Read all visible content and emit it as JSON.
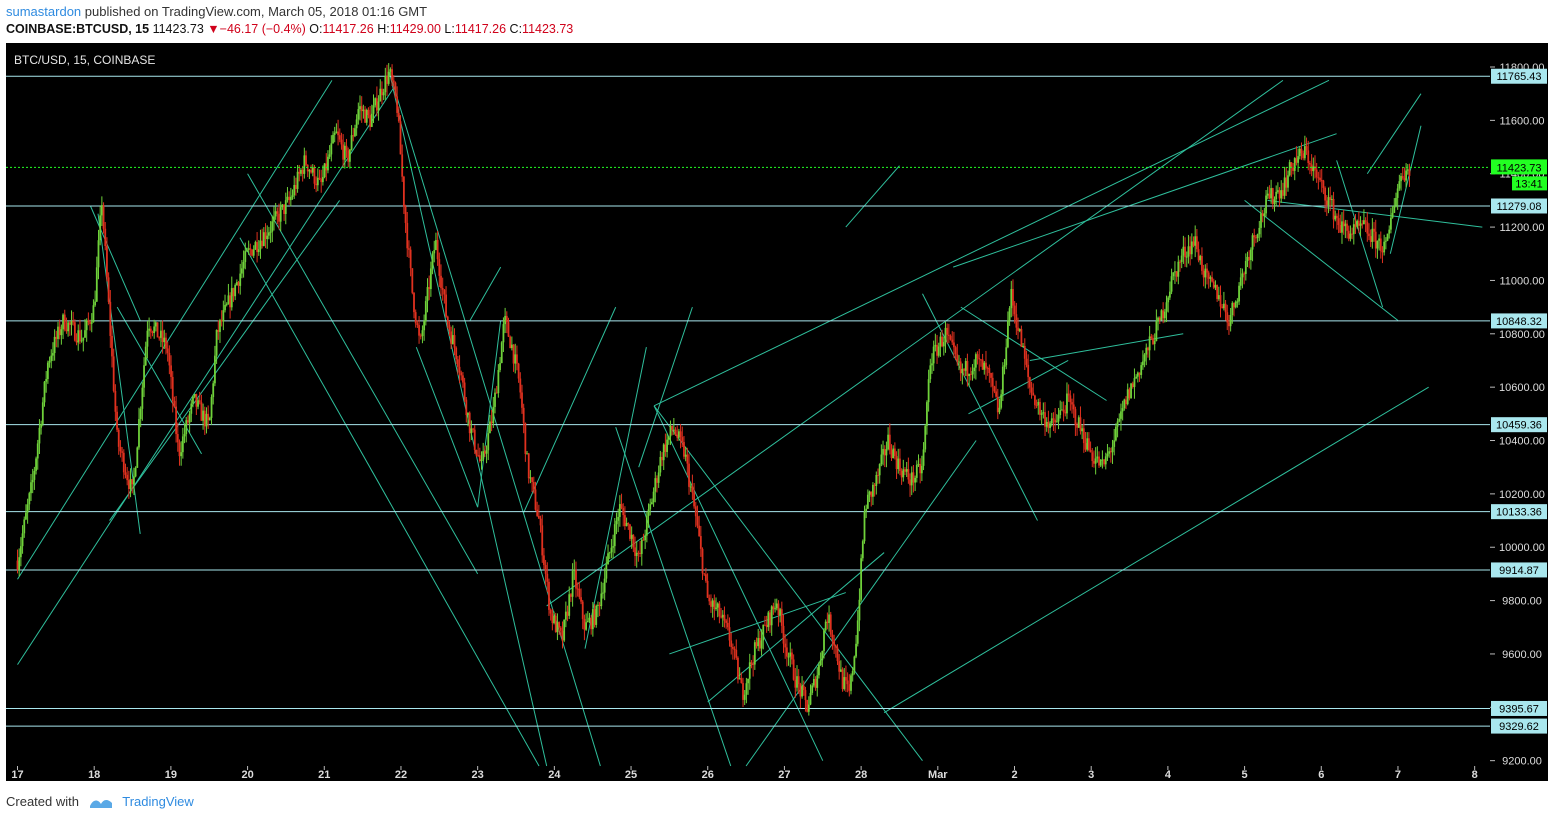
{
  "header": {
    "author": "sumastardon",
    "published_text": "published on TradingView.com, March 05, 2018 01:16 GMT",
    "symbol": "COINBASE:BTCUSD, 15",
    "last": "11423.73",
    "change": "−46.17 (−0.4%)",
    "open_label": "O:",
    "open": "11417.26",
    "high_label": "H:",
    "high": "11429.00",
    "low_label": "L:",
    "low": "11417.26",
    "close_label": "C:",
    "close": "11423.73"
  },
  "footer": {
    "created_with": "Created with",
    "brand": "TradingView"
  },
  "colors": {
    "background": "#000000",
    "up": "#6fd13a",
    "down": "#e0311f",
    "trend": "#2fbf9c",
    "level": "#a9e7ee",
    "current": "#22ff22"
  },
  "chart_data": {
    "type": "candlestick",
    "title": "BTC/USD, 15, COINBASE",
    "ylim": [
      9180,
      11890
    ],
    "y_ticks": [
      9200,
      9400,
      9600,
      9800,
      10000,
      10200,
      10400,
      10600,
      10800,
      11000,
      11200,
      11400,
      11600,
      11800
    ],
    "y_tick_labels": [
      "9200.00",
      "9400.00",
      "9600.00",
      "9800.00",
      "10000.00",
      "10200.00",
      "10400.00",
      "10600.00",
      "10800.00",
      "11000.00",
      "11200.00",
      "11400.00",
      "11600.00",
      "11800.00"
    ],
    "x_tick_labels": [
      "17",
      "18",
      "19",
      "20",
      "21",
      "22",
      "23",
      "24",
      "25",
      "26",
      "27",
      "28",
      "Mar",
      "2",
      "3",
      "4",
      "5",
      "6",
      "7",
      "8"
    ],
    "x_range_days": [
      -0.15,
      19.2
    ],
    "horizontal_levels": [
      11765.43,
      11279.08,
      10848.32,
      10459.36,
      10133.36,
      9914.87,
      9395.67,
      9329.62
    ],
    "level_labels": [
      "11765.43",
      "11279.08",
      "10848.32",
      "10459.36",
      "10133.36",
      "9914.87",
      "9395.67",
      "9329.62"
    ],
    "current_price": 11423.73,
    "current_price_label": "11423.73",
    "countdown_label": "13:41",
    "price_path": [
      [
        0.0,
        9950
      ],
      [
        0.2,
        10250
      ],
      [
        0.4,
        10700
      ],
      [
        0.6,
        10850
      ],
      [
        0.85,
        10780
      ],
      [
        1.0,
        10900
      ],
      [
        1.1,
        11300
      ],
      [
        1.3,
        10400
      ],
      [
        1.5,
        10200
      ],
      [
        1.7,
        10850
      ],
      [
        1.95,
        10750
      ],
      [
        2.1,
        10350
      ],
      [
        2.3,
        10550
      ],
      [
        2.5,
        10450
      ],
      [
        2.6,
        10800
      ],
      [
        2.8,
        10950
      ],
      [
        3.0,
        11100
      ],
      [
        3.3,
        11200
      ],
      [
        3.55,
        11300
      ],
      [
        3.75,
        11450
      ],
      [
        3.95,
        11350
      ],
      [
        4.15,
        11550
      ],
      [
        4.3,
        11450
      ],
      [
        4.45,
        11650
      ],
      [
        4.6,
        11600
      ],
      [
        4.75,
        11720
      ],
      [
        4.85,
        11780
      ],
      [
        4.95,
        11650
      ],
      [
        5.05,
        11250
      ],
      [
        5.15,
        10950
      ],
      [
        5.25,
        10750
      ],
      [
        5.45,
        11150
      ],
      [
        5.6,
        10850
      ],
      [
        5.75,
        10700
      ],
      [
        5.9,
        10450
      ],
      [
        6.05,
        10300
      ],
      [
        6.2,
        10500
      ],
      [
        6.35,
        10850
      ],
      [
        6.45,
        10750
      ],
      [
        6.55,
        10600
      ],
      [
        6.65,
        10300
      ],
      [
        6.8,
        10100
      ],
      [
        6.95,
        9750
      ],
      [
        7.1,
        9650
      ],
      [
        7.25,
        9900
      ],
      [
        7.4,
        9700
      ],
      [
        7.55,
        9750
      ],
      [
        7.7,
        9950
      ],
      [
        7.85,
        10150
      ],
      [
        8.0,
        10050
      ],
      [
        8.1,
        9950
      ],
      [
        8.25,
        10150
      ],
      [
        8.4,
        10350
      ],
      [
        8.55,
        10450
      ],
      [
        8.7,
        10350
      ],
      [
        8.85,
        10100
      ],
      [
        9.0,
        9800
      ],
      [
        9.15,
        9750
      ],
      [
        9.3,
        9650
      ],
      [
        9.45,
        9450
      ],
      [
        9.6,
        9600
      ],
      [
        9.75,
        9700
      ],
      [
        9.9,
        9800
      ],
      [
        10.0,
        9650
      ],
      [
        10.15,
        9500
      ],
      [
        10.3,
        9400
      ],
      [
        10.45,
        9550
      ],
      [
        10.55,
        9750
      ],
      [
        10.65,
        9650
      ],
      [
        10.75,
        9500
      ],
      [
        10.85,
        9450
      ],
      [
        10.95,
        9700
      ],
      [
        11.05,
        10150
      ],
      [
        11.2,
        10250
      ],
      [
        11.35,
        10400
      ],
      [
        11.5,
        10300
      ],
      [
        11.65,
        10250
      ],
      [
        11.8,
        10300
      ],
      [
        11.9,
        10700
      ],
      [
        12.1,
        10800
      ],
      [
        12.3,
        10650
      ],
      [
        12.5,
        10700
      ],
      [
        12.65,
        10650
      ],
      [
        12.8,
        10500
      ],
      [
        12.95,
        10950
      ],
      [
        13.1,
        10750
      ],
      [
        13.2,
        10600
      ],
      [
        13.35,
        10500
      ],
      [
        13.5,
        10450
      ],
      [
        13.7,
        10550
      ],
      [
        13.85,
        10450
      ],
      [
        14.0,
        10350
      ],
      [
        14.15,
        10300
      ],
      [
        14.3,
        10400
      ],
      [
        14.45,
        10550
      ],
      [
        14.6,
        10650
      ],
      [
        14.75,
        10750
      ],
      [
        14.9,
        10850
      ],
      [
        15.05,
        11000
      ],
      [
        15.2,
        11100
      ],
      [
        15.35,
        11150
      ],
      [
        15.5,
        11000
      ],
      [
        15.65,
        10950
      ],
      [
        15.8,
        10850
      ],
      [
        15.95,
        11000
      ],
      [
        16.1,
        11150
      ],
      [
        16.3,
        11300
      ],
      [
        16.5,
        11350
      ],
      [
        16.65,
        11450
      ],
      [
        16.8,
        11480
      ],
      [
        16.95,
        11380
      ],
      [
        17.1,
        11300
      ],
      [
        17.25,
        11200
      ],
      [
        17.4,
        11180
      ],
      [
        17.55,
        11200
      ],
      [
        17.7,
        11150
      ],
      [
        17.85,
        11120
      ],
      [
        17.95,
        11300
      ],
      [
        18.05,
        11400
      ],
      [
        18.15,
        11420
      ]
    ]
  }
}
